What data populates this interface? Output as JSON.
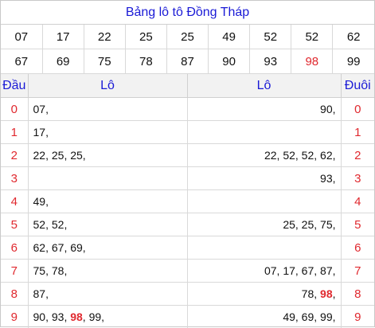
{
  "title": "Bảng lô tô Đồng Tháp",
  "numbers_row1": [
    "07",
    "17",
    "22",
    "25",
    "25",
    "49",
    "52",
    "52",
    "62"
  ],
  "numbers_row2": [
    "67",
    "69",
    "75",
    "78",
    "87",
    "90",
    "93",
    "98",
    "99"
  ],
  "highlight_number": "98",
  "header": {
    "dau": "Đầu",
    "lo_left": "Lô",
    "lo_right": "Lô",
    "duoi": "Đuôi"
  },
  "rows": [
    {
      "digit": "0",
      "left": [
        "07"
      ],
      "right": [
        "90"
      ]
    },
    {
      "digit": "1",
      "left": [
        "17"
      ],
      "right": []
    },
    {
      "digit": "2",
      "left": [
        "22",
        "25",
        "25"
      ],
      "right": [
        "22",
        "52",
        "52",
        "62"
      ]
    },
    {
      "digit": "3",
      "left": [],
      "right": [
        "93"
      ]
    },
    {
      "digit": "4",
      "left": [
        "49"
      ],
      "right": []
    },
    {
      "digit": "5",
      "left": [
        "52",
        "52"
      ],
      "right": [
        "25",
        "25",
        "75"
      ]
    },
    {
      "digit": "6",
      "left": [
        "62",
        "67",
        "69"
      ],
      "right": []
    },
    {
      "digit": "7",
      "left": [
        "75",
        "78"
      ],
      "right": [
        "07",
        "17",
        "67",
        "87"
      ]
    },
    {
      "digit": "8",
      "left": [
        "87"
      ],
      "right": [
        "78",
        "98"
      ]
    },
    {
      "digit": "9",
      "left": [
        "90",
        "93",
        "98",
        "99"
      ],
      "right": [
        "49",
        "69",
        "99"
      ]
    }
  ],
  "colors": {
    "title": "#1a1ad6",
    "digit": "#e0282e",
    "highlight": "#e0282e",
    "header_bg": "#f2f2f2"
  }
}
